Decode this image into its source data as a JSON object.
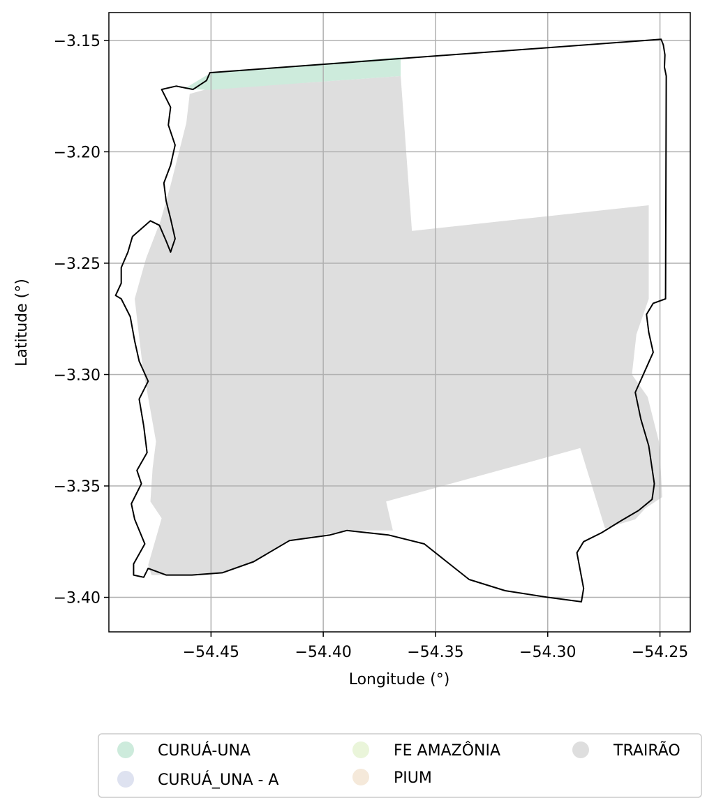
{
  "chart_data": {
    "type": "map",
    "xlabel": "Longitude (°)",
    "ylabel": "Latitude (°)",
    "xlim": [
      -54.4955,
      -54.2365
    ],
    "ylim": [
      -3.4155,
      -3.1375
    ],
    "grid": true,
    "x_ticks": [
      {
        "value": -54.45,
        "label": "−54.45"
      },
      {
        "value": -54.4,
        "label": "−54.40"
      },
      {
        "value": -54.35,
        "label": "−54.35"
      },
      {
        "value": -54.3,
        "label": "−54.30"
      },
      {
        "value": -54.25,
        "label": "−54.25"
      }
    ],
    "y_ticks": [
      {
        "value": -3.15,
        "label": "−3.15"
      },
      {
        "value": -3.2,
        "label": "−3.20"
      },
      {
        "value": -3.25,
        "label": "−3.25"
      },
      {
        "value": -3.3,
        "label": "−3.30"
      },
      {
        "value": -3.35,
        "label": "−3.35"
      },
      {
        "value": -3.4,
        "label": "−3.40"
      }
    ],
    "legend": {
      "placement": "bottom-center, below axes",
      "columns": 3,
      "entries": [
        {
          "label": "CURUÁ-UNA",
          "color": "#cdebdc"
        },
        {
          "label": "CURUÁ_UNA - A",
          "color": "#dee2f0"
        },
        {
          "label": "FE AMAZÔNIA",
          "color": "#eaf5da"
        },
        {
          "label": "PIUM",
          "color": "#f5e9da"
        },
        {
          "label": "TRAIRÃO",
          "color": "#dedede"
        }
      ]
    },
    "regions": [
      {
        "name": "TRAIRÃO",
        "color": "#dedede",
        "coords": [
          [
            -54.4505,
            -3.1715
          ],
          [
            -54.4048,
            -3.1688
          ],
          [
            -54.3655,
            -3.166
          ],
          [
            -54.3605,
            -3.2355
          ],
          [
            -54.255,
            -3.224
          ],
          [
            -54.255,
            -3.266
          ],
          [
            -54.2605,
            -3.282
          ],
          [
            -54.2625,
            -3.3
          ],
          [
            -54.2555,
            -3.31
          ],
          [
            -54.2505,
            -3.33
          ],
          [
            -54.2495,
            -3.345
          ],
          [
            -54.249,
            -3.355
          ],
          [
            -54.2565,
            -3.36
          ],
          [
            -54.261,
            -3.365
          ],
          [
            -54.2745,
            -3.369
          ],
          [
            -54.2855,
            -3.333
          ],
          [
            -54.372,
            -3.357
          ],
          [
            -54.369,
            -3.37
          ],
          [
            -54.3895,
            -3.37
          ],
          [
            -54.415,
            -3.3745
          ],
          [
            -54.431,
            -3.384
          ],
          [
            -54.445,
            -3.389
          ],
          [
            -54.4585,
            -3.39
          ],
          [
            -54.47,
            -3.39
          ],
          [
            -54.4765,
            -3.39
          ],
          [
            -54.478,
            -3.3855
          ],
          [
            -54.472,
            -3.3645
          ],
          [
            -54.477,
            -3.357
          ],
          [
            -54.476,
            -3.342
          ],
          [
            -54.4745,
            -3.33
          ],
          [
            -54.4805,
            -3.296
          ],
          [
            -54.484,
            -3.266
          ],
          [
            -54.479,
            -3.248
          ],
          [
            -54.4725,
            -3.231
          ],
          [
            -54.468,
            -3.215
          ],
          [
            -54.461,
            -3.187
          ],
          [
            -54.4595,
            -3.174
          ]
        ]
      },
      {
        "name": "CURUÁ-UNA",
        "color": "#cdebdc",
        "coords": [
          [
            -54.462,
            -3.1718
          ],
          [
            -54.45,
            -3.1645
          ],
          [
            -54.3655,
            -3.1575
          ],
          [
            -54.3655,
            -3.166
          ],
          [
            -54.4048,
            -3.1688
          ],
          [
            -54.4505,
            -3.1722
          ]
        ]
      }
    ],
    "boundary": {
      "name": "municipality outline",
      "color": "#000000",
      "coords": [
        [
          -54.4505,
          -3.1645
        ],
        [
          -54.2495,
          -3.1495
        ],
        [
          -54.2485,
          -3.152
        ],
        [
          -54.2478,
          -3.1565
        ],
        [
          -54.248,
          -3.162
        ],
        [
          -54.2472,
          -3.166
        ],
        [
          -54.2475,
          -3.266
        ],
        [
          -54.253,
          -3.268
        ],
        [
          -54.256,
          -3.273
        ],
        [
          -54.255,
          -3.281
        ],
        [
          -54.253,
          -3.29
        ],
        [
          -54.257,
          -3.299
        ],
        [
          -54.261,
          -3.308
        ],
        [
          -54.2585,
          -3.32
        ],
        [
          -54.255,
          -3.332
        ],
        [
          -54.2525,
          -3.349
        ],
        [
          -54.2535,
          -3.356
        ],
        [
          -54.2595,
          -3.361
        ],
        [
          -54.268,
          -3.366
        ],
        [
          -54.276,
          -3.371
        ],
        [
          -54.284,
          -3.375
        ],
        [
          -54.287,
          -3.38
        ],
        [
          -54.2855,
          -3.388
        ],
        [
          -54.284,
          -3.396
        ],
        [
          -54.285,
          -3.402
        ],
        [
          -54.3,
          -3.4
        ],
        [
          -54.319,
          -3.397
        ],
        [
          -54.335,
          -3.392
        ],
        [
          -54.345,
          -3.384
        ],
        [
          -54.355,
          -3.376
        ],
        [
          -54.371,
          -3.372
        ],
        [
          -54.3895,
          -3.37
        ],
        [
          -54.397,
          -3.372
        ],
        [
          -54.415,
          -3.3745
        ],
        [
          -54.431,
          -3.384
        ],
        [
          -54.445,
          -3.389
        ],
        [
          -54.4585,
          -3.39
        ],
        [
          -54.47,
          -3.39
        ],
        [
          -54.478,
          -3.387
        ],
        [
          -54.48,
          -3.391
        ],
        [
          -54.4845,
          -3.39
        ],
        [
          -54.4845,
          -3.385
        ],
        [
          -54.4795,
          -3.376
        ],
        [
          -54.484,
          -3.365
        ],
        [
          -54.4855,
          -3.358
        ],
        [
          -54.481,
          -3.349
        ],
        [
          -54.483,
          -3.343
        ],
        [
          -54.4785,
          -3.335
        ],
        [
          -54.48,
          -3.323
        ],
        [
          -54.482,
          -3.311
        ],
        [
          -54.478,
          -3.303
        ],
        [
          -54.482,
          -3.294
        ],
        [
          -54.484,
          -3.285
        ],
        [
          -54.486,
          -3.274
        ],
        [
          -54.49,
          -3.266
        ],
        [
          -54.4925,
          -3.2645
        ],
        [
          -54.49,
          -3.259
        ],
        [
          -54.49,
          -3.252
        ],
        [
          -54.487,
          -3.245
        ],
        [
          -54.485,
          -3.238
        ],
        [
          -54.477,
          -3.231
        ],
        [
          -54.473,
          -3.233
        ],
        [
          -54.47,
          -3.24
        ],
        [
          -54.468,
          -3.245
        ],
        [
          -54.466,
          -3.239
        ],
        [
          -54.468,
          -3.23
        ],
        [
          -54.47,
          -3.222
        ],
        [
          -54.471,
          -3.214
        ],
        [
          -54.468,
          -3.206
        ],
        [
          -54.466,
          -3.197
        ],
        [
          -54.469,
          -3.188
        ],
        [
          -54.468,
          -3.18
        ],
        [
          -54.472,
          -3.172
        ],
        [
          -54.4655,
          -3.1705
        ],
        [
          -54.458,
          -3.172
        ],
        [
          -54.452,
          -3.168
        ]
      ]
    }
  }
}
